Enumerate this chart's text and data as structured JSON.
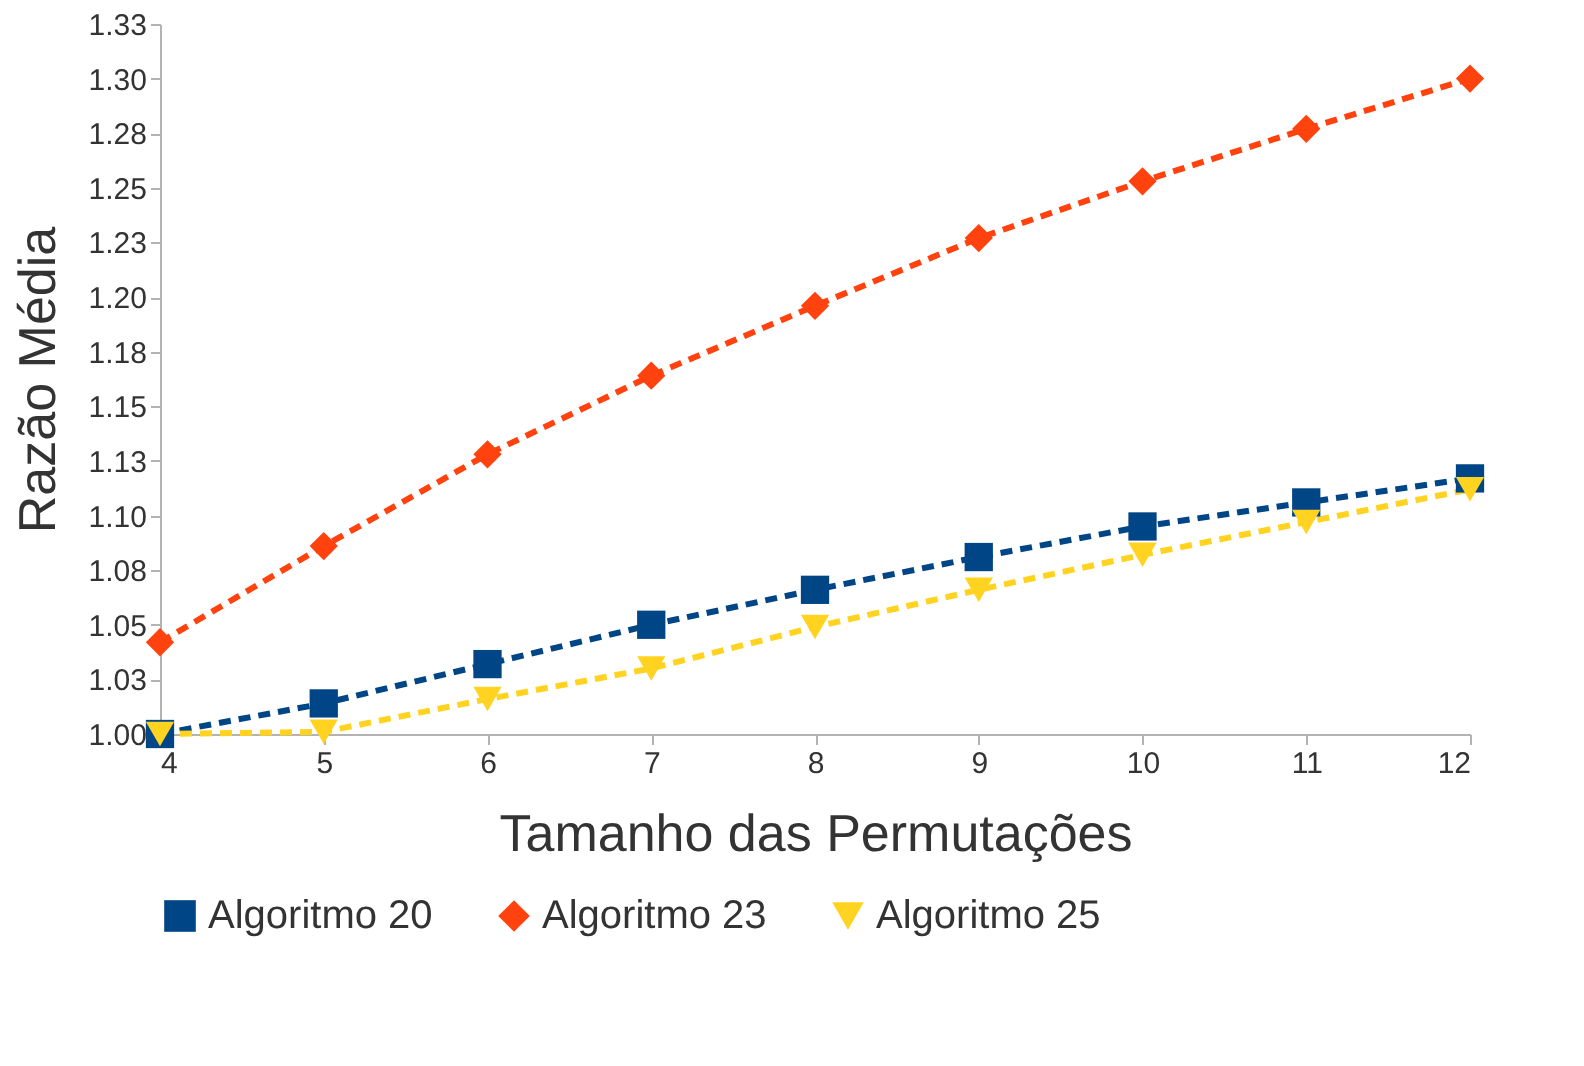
{
  "chart_data": {
    "type": "line",
    "xlabel": "Tamanho das Permutações",
    "ylabel": "Razão Média",
    "x": [
      4,
      5,
      6,
      7,
      8,
      9,
      10,
      11,
      12
    ],
    "series": [
      {
        "name": "Algoritmo 20",
        "color": "#004586",
        "marker": "square",
        "values": [
          1.0,
          1.014,
          1.032,
          1.05,
          1.066,
          1.081,
          1.095,
          1.106,
          1.117
        ]
      },
      {
        "name": "Algoritmo 23",
        "color": "#ff420e",
        "marker": "diamond",
        "values": [
          1.042,
          1.086,
          1.128,
          1.164,
          1.196,
          1.227,
          1.253,
          1.277,
          1.3
        ]
      },
      {
        "name": "Algoritmo 25",
        "color": "#ffd320",
        "marker": "triangle",
        "values": [
          1.0,
          1.001,
          1.016,
          1.03,
          1.049,
          1.066,
          1.082,
          1.097,
          1.112
        ]
      }
    ],
    "xlim": [
      4,
      12
    ],
    "xticks": [
      4,
      5,
      6,
      7,
      8,
      9,
      10,
      11,
      12
    ],
    "ylim": [
      1.0,
      1.325
    ],
    "yticks": [
      "1.00",
      {
        "value": 1.025,
        "label": "1.03"
      },
      "1.05",
      {
        "value": 1.075,
        "label": "1.08"
      },
      "1.10",
      {
        "value": 1.125,
        "label": "1.13"
      },
      "1.15",
      {
        "value": 1.175,
        "label": "1.18"
      },
      "1.20",
      {
        "value": 1.225,
        "label": "1.23"
      },
      "1.25",
      {
        "value": 1.275,
        "label": "1.28"
      },
      "1.30",
      {
        "value": 1.325,
        "label": "1.33"
      }
    ],
    "grid": false,
    "legend": "bottom",
    "line_style": "dashed"
  }
}
